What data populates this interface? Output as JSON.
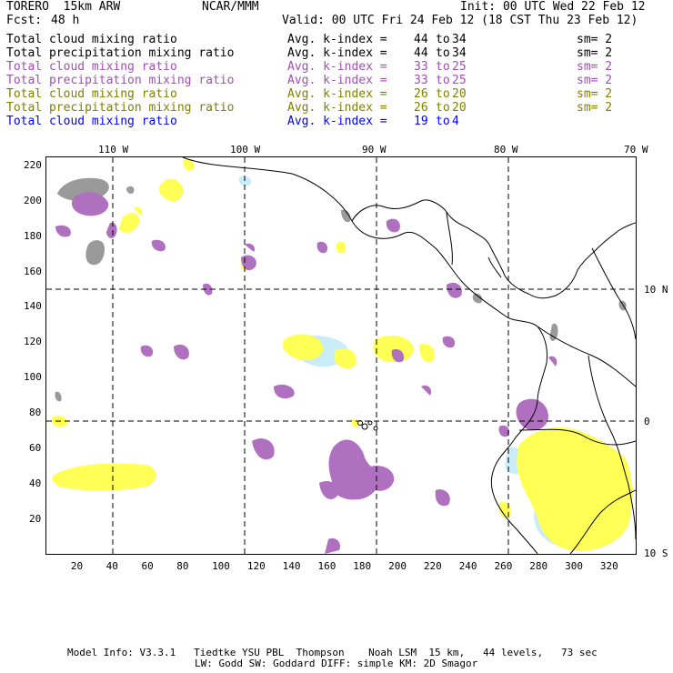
{
  "header": {
    "model": "TORERO  15km ARW",
    "center": "NCAR/MMM",
    "init": "Init: 00 UTC Wed 22 Feb 12",
    "fcst_label": "Fcst:",
    "fcst_value": "48 h",
    "valid": "Valid: 00 UTC Fri 24 Feb 12 (18 CST Thu 23 Feb 12)"
  },
  "colors": {
    "black": "#000000",
    "purple": "#a050b0",
    "olive": "#808000",
    "blue": "#0000ff",
    "gray_fill": "#999999",
    "purple_fill": "#b070c0",
    "yellow_fill": "#ffff50",
    "lightblue_fill": "#c8ecf8"
  },
  "legend": [
    {
      "var": "Total cloud mixing ratio",
      "kidx_label": "Avg. k-index =",
      "k1": "44",
      "to": "to",
      "k2": "34",
      "sm": "sm= 2",
      "color": "#000000"
    },
    {
      "var": "Total precipitation mixing ratio",
      "kidx_label": "Avg. k-index =",
      "k1": "44",
      "to": "to",
      "k2": "34",
      "sm": "sm= 2",
      "color": "#000000"
    },
    {
      "var": "Total cloud mixing ratio",
      "kidx_label": "Avg. k-index =",
      "k1": "33",
      "to": "to",
      "k2": "25",
      "sm": "sm= 2",
      "color": "#a050b0"
    },
    {
      "var": "Total precipitation mixing ratio",
      "kidx_label": "Avg. k-index =",
      "k1": "33",
      "to": "to",
      "k2": "25",
      "sm": "sm= 2",
      "color": "#a050b0"
    },
    {
      "var": "Total cloud mixing ratio",
      "kidx_label": "Avg. k-index =",
      "k1": "26",
      "to": "to",
      "k2": "20",
      "sm": "sm= 2",
      "color": "#808000"
    },
    {
      "var": "Total precipitation mixing ratio",
      "kidx_label": "Avg. k-index =",
      "k1": "26",
      "to": "to",
      "k2": "20",
      "sm": "sm= 2",
      "color": "#808000"
    },
    {
      "var": "Total cloud mixing ratio",
      "kidx_label": "Avg. k-index =",
      "k1": "19",
      "to": "to",
      "k2": "4",
      "sm": "",
      "color": "#0000ff"
    }
  ],
  "map": {
    "lon_labels": [
      "110 W",
      "100 W",
      "90 W",
      "80 W",
      "70 W"
    ],
    "lat_labels": [
      "10 N",
      "0",
      "10 S"
    ],
    "x_ticks": [
      "20",
      "40",
      "60",
      "80",
      "100",
      "120",
      "140",
      "160",
      "180",
      "200",
      "220",
      "240",
      "260",
      "280",
      "300",
      "320"
    ],
    "y_ticks": [
      "220",
      "200",
      "180",
      "160",
      "140",
      "120",
      "100",
      "80",
      "60",
      "40",
      "20"
    ],
    "x_range": [
      1,
      335
    ],
    "y_range": [
      1,
      225
    ]
  },
  "footer": {
    "line1": "Model Info: V3.3.1   Tiedtke YSU PBL  Thompson    Noah LSM  15 km,   44 levels,   73 sec",
    "line2": "LW: Godd SW: Goddard DIFF: simple KM: 2D Smagor"
  }
}
